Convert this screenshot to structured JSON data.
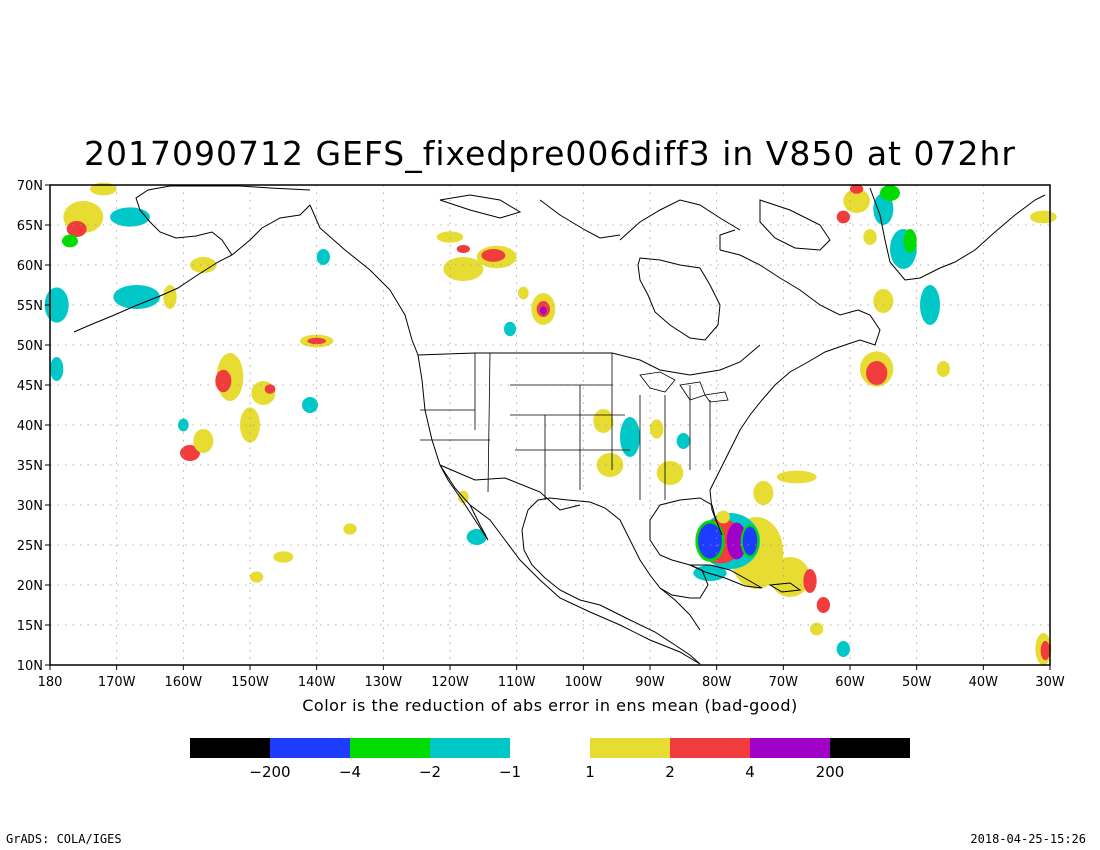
{
  "title": "2017090712 GEFS_fixedpre006diff3 in V850 at 072hr",
  "caption": "Color is the reduction of abs error in ens mean (bad-good)",
  "footer": {
    "left": "GrADS: COLA/IGES",
    "right": "2018-04-25-15:26"
  },
  "map": {
    "lon_range": [
      -180,
      -30
    ],
    "lat_range": [
      10,
      70
    ],
    "lon_ticks": [
      {
        "lon": -180,
        "label": "180"
      },
      {
        "lon": -170,
        "label": "170W"
      },
      {
        "lon": -160,
        "label": "160W"
      },
      {
        "lon": -150,
        "label": "150W"
      },
      {
        "lon": -140,
        "label": "140W"
      },
      {
        "lon": -130,
        "label": "130W"
      },
      {
        "lon": -120,
        "label": "120W"
      },
      {
        "lon": -110,
        "label": "110W"
      },
      {
        "lon": -100,
        "label": "100W"
      },
      {
        "lon": -90,
        "label": "90W"
      },
      {
        "lon": -80,
        "label": "80W"
      },
      {
        "lon": -70,
        "label": "70W"
      },
      {
        "lon": -60,
        "label": "60W"
      },
      {
        "lon": -50,
        "label": "50W"
      },
      {
        "lon": -40,
        "label": "40W"
      },
      {
        "lon": -30,
        "label": "30W"
      }
    ],
    "lat_ticks": [
      {
        "lat": 10,
        "label": "10N"
      },
      {
        "lat": 15,
        "label": "15N"
      },
      {
        "lat": 20,
        "label": "20N"
      },
      {
        "lat": 25,
        "label": "25N"
      },
      {
        "lat": 30,
        "label": "30N"
      },
      {
        "lat": 35,
        "label": "35N"
      },
      {
        "lat": 40,
        "label": "40N"
      },
      {
        "lat": 45,
        "label": "45N"
      },
      {
        "lat": 50,
        "label": "50N"
      },
      {
        "lat": 55,
        "label": "55N"
      },
      {
        "lat": 60,
        "label": "60N"
      },
      {
        "lat": 65,
        "label": "65N"
      },
      {
        "lat": 70,
        "label": "70N"
      }
    ],
    "grid": "dotted"
  },
  "colors": {
    "black": "#000000",
    "blue": "#1e3cff",
    "green": "#00dc00",
    "cyan": "#00c8c8",
    "yellow": "#e6dc32",
    "red": "#f03c3c",
    "purple": "#a000c8"
  },
  "legend": {
    "neg_boxes": [
      "#000000",
      "#1e3cff",
      "#00dc00",
      "#00c8c8"
    ],
    "pos_boxes": [
      "#e6dc32",
      "#f03c3c",
      "#a000c8",
      "#000000"
    ],
    "neg_labels": [
      "−200",
      "−4",
      "−2",
      "−1"
    ],
    "pos_labels": [
      "1",
      "2",
      "4",
      "200"
    ]
  },
  "blobs": [
    {
      "lon": -175,
      "lat": 66,
      "rx": 3,
      "ry": 2,
      "color": "#e6dc32"
    },
    {
      "lon": -176,
      "lat": 64.5,
      "rx": 1.5,
      "ry": 1,
      "color": "#f03c3c"
    },
    {
      "lon": -177,
      "lat": 63,
      "rx": 1.2,
      "ry": 0.8,
      "color": "#00dc00"
    },
    {
      "lon": -172,
      "lat": 69.5,
      "rx": 2,
      "ry": 0.8,
      "color": "#e6dc32"
    },
    {
      "lon": -168,
      "lat": 66,
      "rx": 3,
      "ry": 1.2,
      "color": "#00c8c8"
    },
    {
      "lon": -179,
      "lat": 55,
      "rx": 1.8,
      "ry": 2.2,
      "color": "#00c8c8"
    },
    {
      "lon": -167,
      "lat": 56,
      "rx": 3.5,
      "ry": 1.5,
      "color": "#00c8c8"
    },
    {
      "lon": -162,
      "lat": 56,
      "rx": 1,
      "ry": 1.5,
      "color": "#e6dc32"
    },
    {
      "lon": -157,
      "lat": 60,
      "rx": 2,
      "ry": 1,
      "color": "#e6dc32"
    },
    {
      "lon": -179,
      "lat": 47,
      "rx": 1,
      "ry": 1.5,
      "color": "#00c8c8"
    },
    {
      "lon": -153,
      "lat": 46,
      "rx": 2,
      "ry": 3,
      "color": "#e6dc32"
    },
    {
      "lon": -154,
      "lat": 45.5,
      "rx": 1.2,
      "ry": 1.4,
      "color": "#f03c3c"
    },
    {
      "lon": -148,
      "lat": 44,
      "rx": 1.8,
      "ry": 1.5,
      "color": "#e6dc32"
    },
    {
      "lon": -147,
      "lat": 44.5,
      "rx": 0.8,
      "ry": 0.6,
      "color": "#f03c3c"
    },
    {
      "lon": -150,
      "lat": 40,
      "rx": 1.5,
      "ry": 2.2,
      "color": "#e6dc32"
    },
    {
      "lon": -159,
      "lat": 36.5,
      "rx": 1.5,
      "ry": 1,
      "color": "#f03c3c"
    },
    {
      "lon": -157,
      "lat": 38,
      "rx": 1.5,
      "ry": 1.5,
      "color": "#e6dc32"
    },
    {
      "lon": -160,
      "lat": 40,
      "rx": 0.8,
      "ry": 0.8,
      "color": "#00c8c8"
    },
    {
      "lon": -140,
      "lat": 50.5,
      "rx": 2.5,
      "ry": 0.8,
      "color": "#e6dc32"
    },
    {
      "lon": -140,
      "lat": 50.5,
      "rx": 1.4,
      "ry": 0.4,
      "color": "#f03c3c"
    },
    {
      "lon": -141,
      "lat": 42.5,
      "rx": 1.2,
      "ry": 1,
      "color": "#00c8c8"
    },
    {
      "lon": -139,
      "lat": 61,
      "rx": 1,
      "ry": 1,
      "color": "#00c8c8"
    },
    {
      "lon": -118,
      "lat": 59.5,
      "rx": 3,
      "ry": 1.5,
      "color": "#e6dc32"
    },
    {
      "lon": -113,
      "lat": 61,
      "rx": 3,
      "ry": 1.4,
      "color": "#e6dc32"
    },
    {
      "lon": -113.5,
      "lat": 61.2,
      "rx": 1.8,
      "ry": 0.8,
      "color": "#f03c3c"
    },
    {
      "lon": -118,
      "lat": 62,
      "rx": 1,
      "ry": 0.5,
      "color": "#f03c3c"
    },
    {
      "lon": -106,
      "lat": 54.5,
      "rx": 1.8,
      "ry": 2,
      "color": "#e6dc32"
    },
    {
      "lon": -106,
      "lat": 54.5,
      "rx": 1,
      "ry": 1,
      "color": "#f03c3c"
    },
    {
      "lon": -106,
      "lat": 54.3,
      "rx": 0.5,
      "ry": 0.5,
      "color": "#a000c8"
    },
    {
      "lon": -109,
      "lat": 56.5,
      "rx": 0.8,
      "ry": 0.8,
      "color": "#e6dc32"
    },
    {
      "lon": -111,
      "lat": 52,
      "rx": 0.9,
      "ry": 0.9,
      "color": "#00c8c8"
    },
    {
      "lon": -120,
      "lat": 63.5,
      "rx": 2,
      "ry": 0.7,
      "color": "#e6dc32"
    },
    {
      "lon": -93,
      "lat": 38.5,
      "rx": 1.5,
      "ry": 2.5,
      "color": "#00c8c8"
    },
    {
      "lon": -97,
      "lat": 40.5,
      "rx": 1.5,
      "ry": 1.5,
      "color": "#e6dc32"
    },
    {
      "lon": -96,
      "lat": 35,
      "rx": 2,
      "ry": 1.5,
      "color": "#e6dc32"
    },
    {
      "lon": -89,
      "lat": 39.5,
      "rx": 1,
      "ry": 1.2,
      "color": "#e6dc32"
    },
    {
      "lon": -85,
      "lat": 38,
      "rx": 1,
      "ry": 1,
      "color": "#00c8c8"
    },
    {
      "lon": -87,
      "lat": 34,
      "rx": 2,
      "ry": 1.5,
      "color": "#e6dc32"
    },
    {
      "lon": -118,
      "lat": 31,
      "rx": 0.8,
      "ry": 0.8,
      "color": "#e6dc32"
    },
    {
      "lon": -116,
      "lat": 26,
      "rx": 1.5,
      "ry": 1,
      "color": "#00c8c8"
    },
    {
      "lon": -135,
      "lat": 27,
      "rx": 1,
      "ry": 0.7,
      "color": "#e6dc32"
    },
    {
      "lon": -145,
      "lat": 23.5,
      "rx": 1.5,
      "ry": 0.7,
      "color": "#e6dc32"
    },
    {
      "lon": -149,
      "lat": 21,
      "rx": 1,
      "ry": 0.7,
      "color": "#e6dc32"
    },
    {
      "lon": -74,
      "lat": 24,
      "rx": 4,
      "ry": 4.5,
      "color": "#e6dc32"
    },
    {
      "lon": -69,
      "lat": 21,
      "rx": 3,
      "ry": 2.5,
      "color": "#e6dc32"
    },
    {
      "lon": -73,
      "lat": 31.5,
      "rx": 1.5,
      "ry": 1.5,
      "color": "#e6dc32"
    },
    {
      "lon": -68,
      "lat": 33.5,
      "rx": 3,
      "ry": 0.8,
      "color": "#e6dc32"
    },
    {
      "lon": -66,
      "lat": 20.5,
      "rx": 1,
      "ry": 1.5,
      "color": "#f03c3c"
    },
    {
      "lon": -64,
      "lat": 17.5,
      "rx": 1,
      "ry": 1,
      "color": "#f03c3c"
    },
    {
      "lon": -65,
      "lat": 14.5,
      "rx": 1,
      "ry": 0.8,
      "color": "#e6dc32"
    },
    {
      "lon": -78,
      "lat": 25.5,
      "rx": 4.5,
      "ry": 3.5,
      "color": "#00c8c8"
    },
    {
      "lon": -79.5,
      "lat": 25.5,
      "rx": 3.5,
      "ry": 2.8,
      "color": "#f03c3c"
    },
    {
      "lon": -81,
      "lat": 25.5,
      "rx": 2.2,
      "ry": 2.6,
      "color": "#00dc00"
    },
    {
      "lon": -81,
      "lat": 25.5,
      "rx": 1.8,
      "ry": 2.2,
      "color": "#1e3cff"
    },
    {
      "lon": -77,
      "lat": 25.5,
      "rx": 1.5,
      "ry": 2.3,
      "color": "#a000c8"
    },
    {
      "lon": -75,
      "lat": 25.5,
      "rx": 1.4,
      "ry": 2.1,
      "color": "#00dc00"
    },
    {
      "lon": -75,
      "lat": 25.5,
      "rx": 1.1,
      "ry": 1.8,
      "color": "#1e3cff"
    },
    {
      "lon": -81,
      "lat": 21.5,
      "rx": 2.5,
      "ry": 1,
      "color": "#00c8c8"
    },
    {
      "lon": -79,
      "lat": 28.5,
      "rx": 1,
      "ry": 0.8,
      "color": "#e6dc32"
    },
    {
      "lon": -56,
      "lat": 47,
      "rx": 2.5,
      "ry": 2.2,
      "color": "#e6dc32"
    },
    {
      "lon": -56,
      "lat": 46.5,
      "rx": 1.6,
      "ry": 1.5,
      "color": "#f03c3c"
    },
    {
      "lon": -55,
      "lat": 55.5,
      "rx": 1.5,
      "ry": 1.5,
      "color": "#e6dc32"
    },
    {
      "lon": -48,
      "lat": 55,
      "rx": 1.5,
      "ry": 2.5,
      "color": "#00c8c8"
    },
    {
      "lon": -52,
      "lat": 62,
      "rx": 2,
      "ry": 2.5,
      "color": "#00c8c8"
    },
    {
      "lon": -51,
      "lat": 63,
      "rx": 1,
      "ry": 1.5,
      "color": "#00dc00"
    },
    {
      "lon": -59,
      "lat": 68,
      "rx": 2,
      "ry": 1.5,
      "color": "#e6dc32"
    },
    {
      "lon": -59,
      "lat": 69.5,
      "rx": 1,
      "ry": 0.6,
      "color": "#f03c3c"
    },
    {
      "lon": -61,
      "lat": 66,
      "rx": 1,
      "ry": 0.8,
      "color": "#f03c3c"
    },
    {
      "lon": -55,
      "lat": 67,
      "rx": 1.5,
      "ry": 2,
      "color": "#00c8c8"
    },
    {
      "lon": -54,
      "lat": 69,
      "rx": 1.5,
      "ry": 1,
      "color": "#00dc00"
    },
    {
      "lon": -57,
      "lat": 63.5,
      "rx": 1,
      "ry": 1,
      "color": "#e6dc32"
    },
    {
      "lon": -46,
      "lat": 47,
      "rx": 1,
      "ry": 1,
      "color": "#e6dc32"
    },
    {
      "lon": -31,
      "lat": 12,
      "rx": 1.2,
      "ry": 2,
      "color": "#e6dc32"
    },
    {
      "lon": -30.7,
      "lat": 11.8,
      "rx": 0.7,
      "ry": 1.2,
      "color": "#f03c3c"
    },
    {
      "lon": -31,
      "lat": 66,
      "rx": 2,
      "ry": 0.8,
      "color": "#e6dc32"
    },
    {
      "lon": -61,
      "lat": 12,
      "rx": 1,
      "ry": 1,
      "color": "#00c8c8"
    }
  ]
}
